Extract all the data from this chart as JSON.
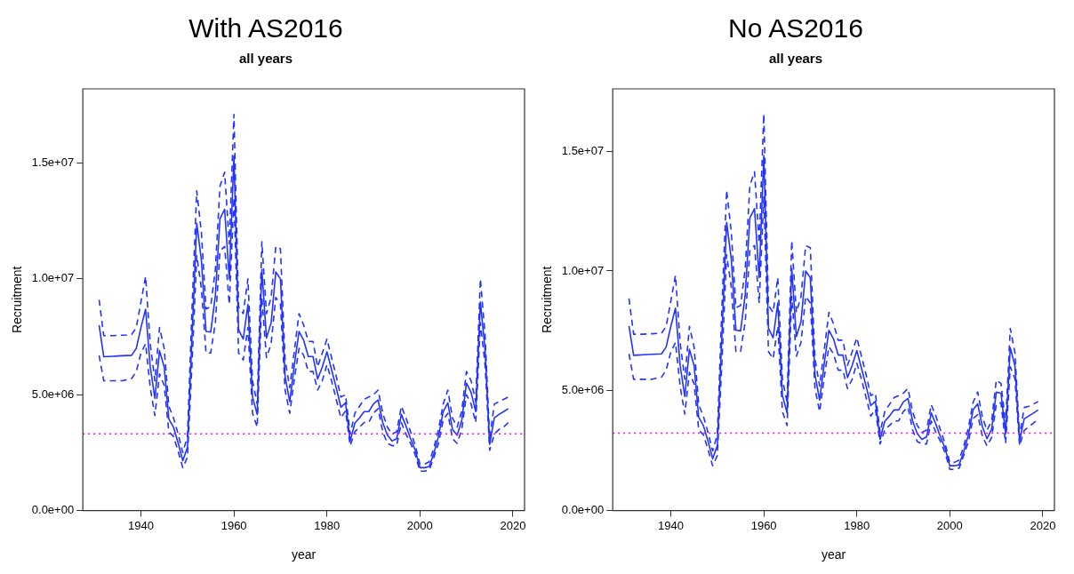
{
  "chart_data": [
    {
      "type": "line",
      "title": "With AS2016",
      "subtitle": "all years",
      "xlabel": "year",
      "ylabel": "Recruitment",
      "x": [
        1931,
        1932,
        1933,
        1934,
        1935,
        1936,
        1937,
        1938,
        1939,
        1940,
        1941,
        1942,
        1943,
        1944,
        1945,
        1946,
        1947,
        1948,
        1949,
        1950,
        1951,
        1952,
        1953,
        1954,
        1955,
        1956,
        1957,
        1958,
        1959,
        1960,
        1961,
        1962,
        1963,
        1964,
        1965,
        1966,
        1967,
        1968,
        1969,
        1970,
        1971,
        1972,
        1973,
        1974,
        1975,
        1976,
        1977,
        1978,
        1979,
        1980,
        1981,
        1982,
        1983,
        1984,
        1985,
        1986,
        1987,
        1988,
        1989,
        1990,
        1991,
        1992,
        1993,
        1994,
        1995,
        1996,
        1997,
        1998,
        1999,
        2000,
        2001,
        2002,
        2003,
        2004,
        2005,
        2006,
        2007,
        2008,
        2009,
        2010,
        2011,
        2012,
        2013,
        2014,
        2015,
        2016,
        2017,
        2018,
        2019
      ],
      "series": [
        {
          "type": "line",
          "color": "#2233ff",
          "line_style": "solid",
          "values": [
            8000000.0,
            6640000.0,
            6650000.0,
            6660000.0,
            6670000.0,
            6680000.0,
            6690000.0,
            6700000.0,
            7000000.0,
            7900000.0,
            8690000.0,
            6200000.0,
            4850000.0,
            6900000.0,
            6200000.0,
            3950000.0,
            3600000.0,
            2920000.0,
            2150000.0,
            2730000.0,
            7600000.0,
            12400000.0,
            10800000.0,
            7730000.0,
            7700000.0,
            9270000.0,
            12600000.0,
            13000000.0,
            10000000.0,
            15300000.0,
            7800000.0,
            7400000.0,
            8900000.0,
            4900000.0,
            4150000.0,
            10400000.0,
            7450000.0,
            8100000.0,
            10300000.0,
            10000000.0,
            5800000.0,
            4700000.0,
            6300000.0,
            7730000.0,
            7350000.0,
            6650000.0,
            6650000.0,
            5680000.0,
            6200000.0,
            6850000.0,
            6080000.0,
            5300000.0,
            4460000.0,
            4650000.0,
            3000000.0,
            3770000.0,
            4000000.0,
            4270000.0,
            4270000.0,
            4600000.0,
            4770000.0,
            3800000.0,
            3250000.0,
            3000000.0,
            3100000.0,
            4150000.0,
            3650000.0,
            3100000.0,
            2600000.0,
            1850000.0,
            1850000.0,
            1900000.0,
            2470000.0,
            3200000.0,
            4270000.0,
            4650000.0,
            3500000.0,
            3250000.0,
            3900000.0,
            5500000.0,
            5100000.0,
            4270000.0,
            9000000.0,
            6960000.0,
            2860000.0,
            4000000.0,
            4150000.0,
            4270000.0,
            4400000.0
          ]
        },
        {
          "type": "line",
          "color": "#2233ff",
          "line_style": "dashed",
          "values": [
            9100000.0,
            7550000.0,
            7550000.0,
            7550000.0,
            7560000.0,
            7570000.0,
            7580000.0,
            7600000.0,
            7900000.0,
            9000000.0,
            10100000.0,
            7200000.0,
            5600000.0,
            7900000.0,
            7000000.0,
            4500000.0,
            4000000.0,
            3300000.0,
            2500000.0,
            3200000.0,
            8800000.0,
            13800000.0,
            12000000.0,
            8700000.0,
            8800000.0,
            10400000.0,
            14000000.0,
            14600000.0,
            11500000.0,
            17100000.0,
            8800000.0,
            8500000.0,
            10000000.0,
            5600000.0,
            4600000.0,
            11600000.0,
            8500000.0,
            9200000.0,
            11400000.0,
            11300000.0,
            6500000.0,
            5300000.0,
            6900000.0,
            8500000.0,
            8000000.0,
            7300000.0,
            7300000.0,
            6200000.0,
            6800000.0,
            7400000.0,
            6600000.0,
            5800000.0,
            4900000.0,
            5000000.0,
            3300000.0,
            4200000.0,
            4500000.0,
            4800000.0,
            4900000.0,
            5000000.0,
            5200000.0,
            4200000.0,
            3600000.0,
            3300000.0,
            3400000.0,
            4500000.0,
            4000000.0,
            3400000.0,
            2800000.0,
            2000000.0,
            2000000.0,
            2100000.0,
            2700000.0,
            3500000.0,
            4600000.0,
            5200000.0,
            4000000.0,
            3600000.0,
            4300000.0,
            6000000.0,
            5600000.0,
            4700000.0,
            10000000.0,
            7600000.0,
            3100000.0,
            4600000.0,
            4700000.0,
            4800000.0,
            4900000.0
          ]
        },
        {
          "type": "line",
          "color": "#2233ff",
          "line_style": "dashed",
          "values": [
            6700000.0,
            5600000.0,
            5600000.0,
            5600000.0,
            5600000.0,
            5600000.0,
            5650000.0,
            5700000.0,
            6000000.0,
            6800000.0,
            7200000.0,
            5300000.0,
            4100000.0,
            5900000.0,
            5400000.0,
            3400000.0,
            3200000.0,
            2550000.0,
            1850000.0,
            2300000.0,
            6400000.0,
            11000000.0,
            9600000.0,
            6800000.0,
            6800000.0,
            8100000.0,
            11200000.0,
            11400000.0,
            8900000.0,
            13500000.0,
            6800000.0,
            6500000.0,
            7900000.0,
            4200000.0,
            3600000.0,
            9200000.0,
            6600000.0,
            7200000.0,
            9200000.0,
            8900000.0,
            5200000.0,
            4200000.0,
            5700000.0,
            7000000.0,
            6700000.0,
            6000000.0,
            6000000.0,
            5200000.0,
            5600000.0,
            6300000.0,
            5600000.0,
            4800000.0,
            4000000.0,
            4300000.0,
            2800000.0,
            3400000.0,
            3600000.0,
            3800000.0,
            3800000.0,
            4200000.0,
            4400000.0,
            3400000.0,
            2900000.0,
            2800000.0,
            2800000.0,
            3800000.0,
            3300000.0,
            2900000.0,
            2400000.0,
            1700000.0,
            1700000.0,
            1750000.0,
            2300000.0,
            2900000.0,
            3900000.0,
            4200000.0,
            3100000.0,
            2900000.0,
            3500000.0,
            5000000.0,
            4600000.0,
            3800000.0,
            8100000.0,
            6300000.0,
            2600000.0,
            3300000.0,
            3500000.0,
            3600000.0,
            3800000.0
          ]
        }
      ],
      "xlim": [
        1927.5,
        2022.5
      ],
      "xticks": [
        1940,
        1960,
        1980,
        2000,
        2020
      ],
      "ylim": [
        0,
        18200000.0
      ],
      "yticks": [
        {
          "value": 0,
          "label": "0.0e+00"
        },
        {
          "value": 5000000,
          "label": "5.0e+06"
        },
        {
          "value": 10000000,
          "label": "1.0e+07"
        },
        {
          "value": 15000000,
          "label": "1.5e+07"
        }
      ],
      "ref_lines": [
        {
          "axis": "y",
          "value": 3310000.0,
          "color": "#ff00ff",
          "line_style": "dotted"
        }
      ],
      "grid": false,
      "legend": false,
      "marker": "none"
    },
    {
      "type": "line",
      "title": "No AS2016",
      "subtitle": "all years",
      "xlabel": "year",
      "ylabel": "Recruitment",
      "x": [
        1931,
        1932,
        1933,
        1934,
        1935,
        1936,
        1937,
        1938,
        1939,
        1940,
        1941,
        1942,
        1943,
        1944,
        1945,
        1946,
        1947,
        1948,
        1949,
        1950,
        1951,
        1952,
        1953,
        1954,
        1955,
        1956,
        1957,
        1958,
        1959,
        1960,
        1961,
        1962,
        1963,
        1964,
        1965,
        1966,
        1967,
        1968,
        1969,
        1970,
        1971,
        1972,
        1973,
        1974,
        1975,
        1976,
        1977,
        1978,
        1979,
        1980,
        1981,
        1982,
        1983,
        1984,
        1985,
        1986,
        1987,
        1988,
        1989,
        1990,
        1991,
        1992,
        1993,
        1994,
        1995,
        1996,
        1997,
        1998,
        1999,
        2000,
        2001,
        2002,
        2003,
        2004,
        2005,
        2006,
        2007,
        2008,
        2009,
        2010,
        2011,
        2012,
        2013,
        2014,
        2015,
        2016,
        2017,
        2018,
        2019
      ],
      "series": [
        {
          "type": "line",
          "color": "#2233ff",
          "line_style": "solid",
          "values": [
            7700000.0,
            6480000.0,
            6490000.0,
            6500000.0,
            6510000.0,
            6520000.0,
            6530000.0,
            6540000.0,
            6830000.0,
            7690000.0,
            8450000.0,
            6060000.0,
            4760000.0,
            6730000.0,
            6060000.0,
            3890000.0,
            3550000.0,
            2900000.0,
            2160000.0,
            2710000.0,
            7400000.0,
            12030000.0,
            10490000.0,
            7530000.0,
            7500000.0,
            9010000.0,
            12220000.0,
            12600000.0,
            9720000.0,
            14820000.0,
            7600000.0,
            7210000.0,
            8660000.0,
            4800000.0,
            4080000.0,
            10100000.0,
            7260000.0,
            7890000.0,
            10000000.0,
            9720000.0,
            5670000.0,
            4610000.0,
            6150000.0,
            7530000.0,
            7160000.0,
            6490000.0,
            6490000.0,
            5550000.0,
            6060000.0,
            6680000.0,
            5940000.0,
            5190000.0,
            4380000.0,
            4560000.0,
            2970000.0,
            3720000.0,
            3940000.0,
            4200000.0,
            4200000.0,
            4530000.0,
            4680000.0,
            3740000.0,
            3210000.0,
            2970000.0,
            3070000.0,
            4080000.0,
            3600000.0,
            3070000.0,
            2590000.0,
            1870000.0,
            1870000.0,
            1910000.0,
            2460000.0,
            3170000.0,
            4200000.0,
            4450000.0,
            3500000.0,
            3000000.0,
            3400000.0,
            4940000.0,
            4900000.0,
            3200000.0,
            6800000.0,
            6050000.0,
            2900000.0,
            3830000.0,
            3950000.0,
            4070000.0,
            4200000.0
          ]
        },
        {
          "type": "line",
          "color": "#2233ff",
          "line_style": "dashed",
          "values": [
            8850000.0,
            7360000.0,
            7360000.0,
            7360000.0,
            7370000.0,
            7380000.0,
            7390000.0,
            7400000.0,
            7690000.0,
            8750000.0,
            9810000.0,
            7020000.0,
            5480000.0,
            7690000.0,
            6830000.0,
            4420000.0,
            3940000.0,
            3260000.0,
            2490000.0,
            3170000.0,
            8560000.0,
            13370000.0,
            11640000.0,
            8460000.0,
            8560000.0,
            10100000.0,
            13570000.0,
            14140000.0,
            11160000.0,
            16550000.0,
            8560000.0,
            8270000.0,
            9720000.0,
            5480000.0,
            4510000.0,
            11260000.0,
            8270000.0,
            8940000.0,
            11060000.0,
            10970000.0,
            6340000.0,
            5190000.0,
            6730000.0,
            8270000.0,
            7790000.0,
            7110000.0,
            7110000.0,
            6060000.0,
            6630000.0,
            7210000.0,
            6440000.0,
            5670000.0,
            4800000.0,
            4900000.0,
            3260000.0,
            4130000.0,
            4420000.0,
            4710000.0,
            4800000.0,
            4900000.0,
            5090000.0,
            4130000.0,
            3550000.0,
            3260000.0,
            3360000.0,
            4420000.0,
            3940000.0,
            3360000.0,
            2780000.0,
            2010000.0,
            2010000.0,
            2110000.0,
            2690000.0,
            3460000.0,
            4510000.0,
            4950000.0,
            3900000.0,
            3350000.0,
            3750000.0,
            5450000.0,
            5300000.0,
            3600000.0,
            7600000.0,
            6600000.0,
            3100000.0,
            4300000.0,
            4350000.0,
            4450000.0,
            4550000.0
          ]
        },
        {
          "type": "line",
          "color": "#2233ff",
          "line_style": "dashed",
          "values": [
            6540000.0,
            5480000.0,
            5480000.0,
            5480000.0,
            5480000.0,
            5480000.0,
            5530000.0,
            5570000.0,
            5860000.0,
            6630000.0,
            7020000.0,
            5190000.0,
            4030000.0,
            5770000.0,
            5290000.0,
            3360000.0,
            3170000.0,
            2540000.0,
            1870000.0,
            2300000.0,
            6250000.0,
            10680000.0,
            9330000.0,
            6630000.0,
            6630000.0,
            7890000.0,
            10870000.0,
            11060000.0,
            8660000.0,
            13090000.0,
            6630000.0,
            6340000.0,
            7690000.0,
            4130000.0,
            3550000.0,
            8940000.0,
            6440000.0,
            7020000.0,
            8940000.0,
            8660000.0,
            5090000.0,
            4130000.0,
            5570000.0,
            6830000.0,
            6540000.0,
            5860000.0,
            5860000.0,
            5090000.0,
            5480000.0,
            6150000.0,
            5480000.0,
            4710000.0,
            3940000.0,
            4230000.0,
            2780000.0,
            3360000.0,
            3550000.0,
            3740000.0,
            3740000.0,
            4130000.0,
            4320000.0,
            3360000.0,
            2880000.0,
            2780000.0,
            2780000.0,
            3740000.0,
            3260000.0,
            2880000.0,
            2400000.0,
            1720000.0,
            1720000.0,
            1770000.0,
            2300000.0,
            2880000.0,
            3840000.0,
            4000000.0,
            3100000.0,
            2700000.0,
            3050000.0,
            4450000.0,
            4500000.0,
            2800000.0,
            6000000.0,
            5500000.0,
            2700000.0,
            3350000.0,
            3500000.0,
            3650000.0,
            3800000.0
          ]
        }
      ],
      "xlim": [
        1927.5,
        2022.5
      ],
      "xticks": [
        1940,
        1960,
        1980,
        2000,
        2020
      ],
      "ylim": [
        0,
        17600000.0
      ],
      "yticks": [
        {
          "value": 0,
          "label": "0.0e+00"
        },
        {
          "value": 5000000,
          "label": "5.0e+06"
        },
        {
          "value": 10000000,
          "label": "1.0e+07"
        },
        {
          "value": 15000000,
          "label": "1.5e+07"
        }
      ],
      "ref_lines": [
        {
          "axis": "y",
          "value": 3230000.0,
          "color": "#ff00ff",
          "line_style": "dotted"
        }
      ],
      "grid": false,
      "legend": false,
      "marker": "none"
    }
  ]
}
